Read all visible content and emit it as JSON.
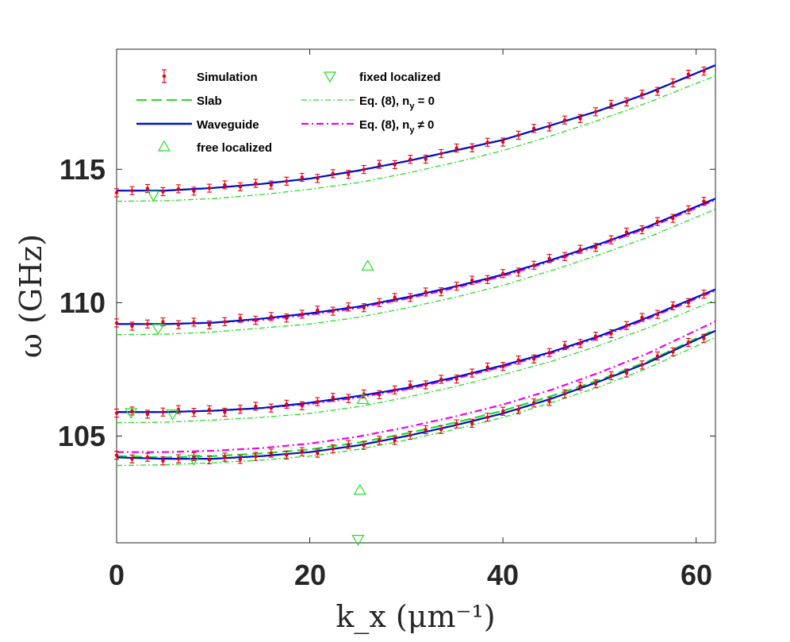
{
  "chart_data": {
    "type": "line",
    "title": "",
    "xlabel": "k_x (μm⁻¹)",
    "ylabel": "ω (GHz)",
    "xlim": [
      0,
      62
    ],
    "ylim": [
      101,
      119.5
    ],
    "xticks": [
      "0",
      "20",
      "40",
      "60"
    ],
    "yticks": [
      "105",
      "110",
      "115"
    ],
    "grid": false,
    "legend_position": "top-left",
    "legend": {
      "simulation": "Simulation",
      "slab": "Slab",
      "waveguide": "Waveguide",
      "free_localized": "free localized",
      "fixed_localized": "fixed localized",
      "eq8_ny0": "Eq. (8), n",
      "eq8_ny0_sub": "y",
      "eq8_ny0_tail": " = 0",
      "eq8_nyne0": "Eq. (8), n",
      "eq8_nyne0_sub": "y",
      "eq8_nyne0_tail": " ≠ 0"
    },
    "colors": {
      "simulation": "#e8000b",
      "slab": "#22dd22",
      "waveguide": "#0010c8",
      "eq8_ny0": "#22dd22",
      "eq8_nyne0": "#ee00ee",
      "markers": "#22dd22"
    },
    "series": [
      {
        "name": "Waveguide",
        "branches": [
          {
            "x": [
              0,
              5,
              10,
              15,
              20,
              25,
              30,
              35,
              40,
              45,
              50,
              55,
              62
            ],
            "y": [
              114.2,
              114.2,
              114.3,
              114.45,
              114.65,
              114.95,
              115.3,
              115.7,
              116.1,
              116.65,
              117.2,
              117.85,
              118.9
            ]
          },
          {
            "x": [
              0,
              5,
              10,
              15,
              20,
              25,
              30,
              35,
              40,
              45,
              50,
              55,
              62
            ],
            "y": [
              109.2,
              109.2,
              109.25,
              109.4,
              109.6,
              109.85,
              110.2,
              110.6,
              111.05,
              111.6,
              112.2,
              112.85,
              113.9
            ]
          },
          {
            "x": [
              0,
              5,
              10,
              15,
              20,
              25,
              30,
              35,
              40,
              45,
              50,
              55,
              62
            ],
            "y": [
              105.9,
              105.9,
              105.95,
              106.05,
              106.25,
              106.5,
              106.8,
              107.2,
              107.65,
              108.15,
              108.75,
              109.45,
              110.5
            ]
          },
          {
            "x": [
              0,
              5,
              10,
              15,
              20,
              25,
              30,
              35,
              40,
              45,
              50,
              55,
              62
            ],
            "y": [
              104.2,
              104.15,
              104.15,
              104.25,
              104.4,
              104.65,
              105.0,
              105.4,
              105.85,
              106.4,
              107.05,
              107.75,
              108.95
            ]
          }
        ]
      },
      {
        "name": "Slab",
        "branches": [
          {
            "x": [
              0,
              5,
              10,
              15,
              20,
              25,
              30,
              35,
              40,
              45,
              50,
              55,
              62
            ],
            "y": [
              114.2,
              114.2,
              114.3,
              114.45,
              114.65,
              114.95,
              115.3,
              115.7,
              116.1,
              116.65,
              117.2,
              117.85,
              118.9
            ]
          },
          {
            "x": [
              0,
              5,
              10,
              15,
              20,
              25,
              30,
              35,
              40,
              45,
              50,
              55,
              62
            ],
            "y": [
              109.2,
              109.2,
              109.25,
              109.4,
              109.6,
              109.85,
              110.2,
              110.6,
              111.05,
              111.6,
              112.2,
              112.85,
              113.9
            ]
          },
          {
            "x": [
              0,
              5,
              10,
              15,
              20,
              25,
              30,
              35,
              40,
              45,
              50,
              55,
              62
            ],
            "y": [
              105.9,
              105.9,
              105.95,
              106.05,
              106.25,
              106.5,
              106.8,
              107.2,
              107.65,
              108.15,
              108.75,
              109.45,
              110.5
            ]
          },
          {
            "x": [
              0,
              5,
              10,
              15,
              20,
              25,
              30,
              35,
              40,
              45,
              50,
              55,
              62
            ],
            "y": [
              104.25,
              104.2,
              104.25,
              104.35,
              104.5,
              104.75,
              105.1,
              105.5,
              105.95,
              106.5,
              107.1,
              107.8,
              109.0
            ]
          }
        ]
      },
      {
        "name": "Eq. (8), n_y = 0",
        "branches": [
          {
            "x": [
              0,
              5,
              10,
              15,
              20,
              25,
              30,
              35,
              40,
              45,
              50,
              55,
              62
            ],
            "y": [
              113.8,
              113.82,
              113.9,
              114.05,
              114.25,
              114.5,
              114.85,
              115.25,
              115.7,
              116.25,
              116.85,
              117.5,
              118.5
            ]
          },
          {
            "x": [
              0,
              5,
              10,
              15,
              20,
              25,
              30,
              35,
              40,
              45,
              50,
              55,
              62
            ],
            "y": [
              108.8,
              108.82,
              108.9,
              109.05,
              109.2,
              109.45,
              109.8,
              110.2,
              110.65,
              111.2,
              111.8,
              112.45,
              113.5
            ]
          },
          {
            "x": [
              0,
              5,
              10,
              15,
              20,
              25,
              30,
              35,
              40,
              45,
              50,
              55,
              62
            ],
            "y": [
              105.5,
              105.52,
              105.6,
              105.7,
              105.85,
              106.1,
              106.45,
              106.85,
              107.3,
              107.8,
              108.4,
              109.05,
              110.1
            ]
          },
          {
            "x": [
              0,
              5,
              10,
              15,
              20,
              25,
              30,
              35,
              40,
              45,
              50,
              55,
              62
            ],
            "y": [
              103.9,
              103.92,
              104.0,
              104.1,
              104.25,
              104.5,
              104.85,
              105.25,
              105.7,
              106.25,
              106.85,
              107.55,
              108.7
            ]
          }
        ]
      },
      {
        "name": "Eq. (8), n_y ≠ 0",
        "branches": [
          {
            "x": [
              0,
              5,
              10,
              15,
              20,
              25,
              30,
              35,
              40,
              45,
              50,
              55,
              62
            ],
            "y": [
              114.2,
              114.2,
              114.3,
              114.45,
              114.65,
              114.95,
              115.3,
              115.7,
              116.1,
              116.65,
              117.2,
              117.85,
              118.9
            ]
          },
          {
            "x": [
              0,
              5,
              10,
              15,
              20,
              25,
              30,
              35,
              40,
              45,
              50,
              55,
              62
            ],
            "y": [
              109.2,
              109.2,
              109.25,
              109.35,
              109.55,
              109.8,
              110.15,
              110.55,
              111.0,
              111.55,
              112.15,
              112.8,
              113.85
            ]
          },
          {
            "x": [
              0,
              5,
              10,
              15,
              20,
              25,
              30,
              35,
              40,
              45,
              50,
              55,
              62
            ],
            "y": [
              105.9,
              105.9,
              105.95,
              106.05,
              106.2,
              106.45,
              106.75,
              107.15,
              107.6,
              108.1,
              108.7,
              109.4,
              110.45
            ]
          },
          {
            "x": [
              0,
              5,
              10,
              15,
              20,
              25,
              30,
              35,
              40,
              45,
              50,
              55,
              62
            ],
            "y": [
              104.4,
              104.4,
              104.45,
              104.55,
              104.72,
              104.98,
              105.33,
              105.73,
              106.18,
              106.73,
              107.38,
              108.1,
              109.3
            ]
          }
        ]
      }
    ],
    "simulation_error": 0.15,
    "free_localized": {
      "x": [
        25.5,
        26,
        25.2
      ],
      "y": [
        106.4,
        111.4,
        103.0
      ]
    },
    "fixed_localized": {
      "x": [
        3.8,
        4.3,
        1.5,
        5.8,
        8.0,
        25.0
      ],
      "y": [
        114.0,
        109.0,
        105.85,
        105.8,
        104.1,
        101.1
      ]
    }
  }
}
